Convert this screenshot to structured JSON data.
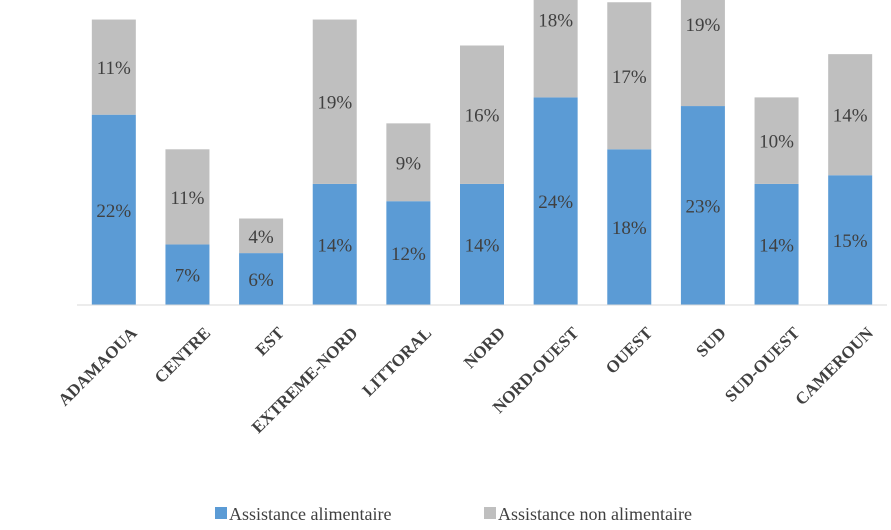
{
  "chart_data": {
    "type": "bar",
    "stacked": true,
    "categories": [
      "ADAMAOUA",
      "CENTRE",
      "EST",
      "EXTREME-NORD",
      "LITTORAL",
      "NORD",
      "NORD-OUEST",
      "OUEST",
      "SUD",
      "SUD-OUEST",
      "CAMEROUN"
    ],
    "series": [
      {
        "name": "Assistance alimentaire",
        "color": "#5b9bd5",
        "values": [
          22,
          7,
          6,
          14,
          12,
          14,
          24,
          18,
          23,
          14,
          15
        ],
        "labels": [
          "22%",
          "7%",
          "6%",
          "14%",
          "12%",
          "14%",
          "24%",
          "18%",
          "23%",
          "14%",
          "15%"
        ]
      },
      {
        "name": "Assistance non alimentaire",
        "color": "#bfbfbf",
        "values": [
          11,
          11,
          4,
          19,
          9,
          16,
          18,
          17,
          19,
          10,
          14
        ],
        "labels": [
          "11%",
          "11%",
          "4%",
          "19%",
          "9%",
          "16%",
          "18%",
          "17%",
          "19%",
          "10%",
          "14%"
        ]
      }
    ],
    "ylim": [
      0,
      42
    ],
    "grid": false,
    "legend_position": "bottom",
    "title": "",
    "xlabel": "",
    "ylabel": ""
  }
}
